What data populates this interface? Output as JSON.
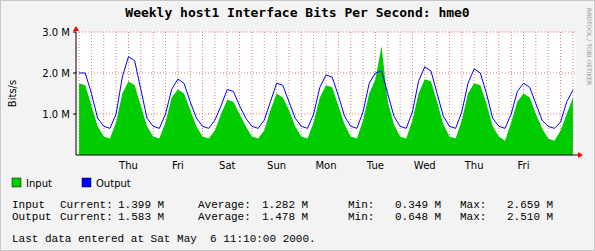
{
  "chart_data": {
    "type": "line",
    "title": "Weekly host1 Interface Bits Per Second: hme0",
    "y_label": "Bits/s",
    "credit": "RRDTOOL / TOBI OETIKER",
    "categories": [
      null,
      null,
      null,
      null,
      null,
      null,
      null,
      null,
      "Thu",
      null,
      null,
      null,
      null,
      null,
      null,
      null,
      "Fri",
      null,
      null,
      null,
      null,
      null,
      null,
      null,
      "Sat",
      null,
      null,
      null,
      null,
      null,
      null,
      null,
      "Sun",
      null,
      null,
      null,
      null,
      null,
      null,
      null,
      "Mon",
      null,
      null,
      null,
      null,
      null,
      null,
      null,
      "Tue",
      null,
      null,
      null,
      null,
      null,
      null,
      null,
      "Wed",
      null,
      null,
      null,
      null,
      null,
      null,
      null,
      "Thu",
      null,
      null,
      null,
      null,
      null,
      null,
      null,
      "Fri",
      null,
      null,
      null,
      null,
      null,
      null,
      null,
      null
    ],
    "series": [
      {
        "name": "Input",
        "color": "#00cc00",
        "type": "area",
        "values": [
          1.75,
          1.7,
          1.2,
          0.7,
          0.45,
          0.4,
          0.8,
          1.5,
          1.8,
          1.7,
          1.2,
          0.7,
          0.45,
          0.4,
          0.8,
          1.4,
          1.6,
          1.5,
          1.1,
          0.7,
          0.45,
          0.4,
          0.6,
          1.0,
          1.35,
          1.3,
          1.0,
          0.7,
          0.45,
          0.4,
          0.6,
          1.1,
          1.5,
          1.4,
          1.1,
          0.7,
          0.45,
          0.4,
          0.8,
          1.4,
          1.7,
          1.65,
          1.2,
          0.75,
          0.45,
          0.4,
          0.85,
          1.5,
          1.85,
          2.65,
          1.3,
          0.75,
          0.45,
          0.4,
          0.85,
          1.5,
          1.85,
          1.8,
          1.3,
          0.75,
          0.45,
          0.4,
          0.85,
          1.5,
          1.75,
          1.7,
          1.25,
          0.7,
          0.45,
          0.35,
          0.8,
          1.3,
          1.5,
          1.4,
          1.0,
          0.65,
          0.4,
          0.35,
          0.6,
          1.0,
          1.4
        ]
      },
      {
        "name": "Output",
        "color": "#0000ff",
        "type": "line",
        "values": [
          2.0,
          2.0,
          1.5,
          0.9,
          0.7,
          0.65,
          1.0,
          1.9,
          2.4,
          2.3,
          1.6,
          0.9,
          0.7,
          0.65,
          1.0,
          1.6,
          1.85,
          1.75,
          1.3,
          0.9,
          0.7,
          0.65,
          0.85,
          1.2,
          1.6,
          1.55,
          1.2,
          0.9,
          0.7,
          0.65,
          0.85,
          1.3,
          1.75,
          1.7,
          1.3,
          0.9,
          0.7,
          0.65,
          1.0,
          1.65,
          1.95,
          1.9,
          1.45,
          0.95,
          0.7,
          0.65,
          1.05,
          1.75,
          2.0,
          2.05,
          1.5,
          0.95,
          0.7,
          0.65,
          1.05,
          1.8,
          2.15,
          2.05,
          1.5,
          0.95,
          0.7,
          0.65,
          1.05,
          1.75,
          2.1,
          2.0,
          1.5,
          0.9,
          0.7,
          0.65,
          1.0,
          1.55,
          1.75,
          1.65,
          1.25,
          0.85,
          0.7,
          0.65,
          0.8,
          1.3,
          1.58
        ]
      }
    ],
    "ylim": [
      0,
      3
    ],
    "yticks": [
      {
        "value": 1,
        "label": "1.0 M"
      },
      {
        "value": 2,
        "label": "2.0 M"
      },
      {
        "value": 3,
        "label": "3.0 M"
      }
    ],
    "grid": true,
    "legend": "bottom",
    "stats": {
      "columns": [
        "Current:",
        "Average:",
        "Min:",
        "Max:"
      ],
      "rows": [
        {
          "name": "Input",
          "values": [
            "1.399 M",
            "1.282 M",
            "0.349 M",
            "2.659 M"
          ]
        },
        {
          "name": "Output",
          "values": [
            "1.583 M",
            "1.478 M",
            "0.648 M",
            "2.510 M"
          ]
        }
      ]
    },
    "footer": "Last data entered at Sat May  6 11:10:00 2000."
  }
}
